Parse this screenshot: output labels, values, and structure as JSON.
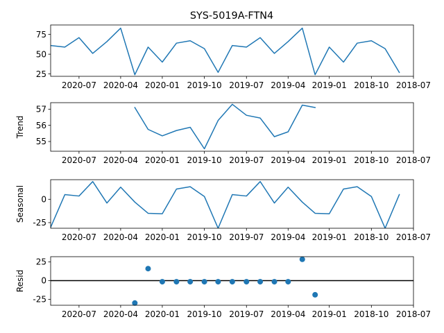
{
  "chart_data": {
    "type": "line",
    "title": "SYS-5019A-FTN4",
    "x_axis": {
      "inverted": true,
      "range": [
        "2020-09-01",
        "2018-07-01"
      ],
      "tick_labels": [
        "2020-07",
        "2020-04",
        "2020-01",
        "2019-10",
        "2019-07",
        "2019-04",
        "2019-01",
        "2018-10",
        "2018-07"
      ]
    },
    "x": [
      "2020-09-01",
      "2020-08-01",
      "2020-07-01",
      "2020-06-01",
      "2020-05-01",
      "2020-04-01",
      "2020-03-01",
      "2020-02-01",
      "2020-01-01",
      "2019-12-01",
      "2019-11-01",
      "2019-10-01",
      "2019-09-01",
      "2019-08-01",
      "2019-07-01",
      "2019-06-01",
      "2019-05-01",
      "2019-04-01",
      "2019-03-01",
      "2019-02-01",
      "2019-01-01",
      "2018-12-01",
      "2018-11-01",
      "2018-10-01",
      "2018-09-01",
      "2018-08-01",
      "2018-07-01"
    ],
    "panels": [
      {
        "name": "observed",
        "ylabel": "",
        "ylim": [
          22,
          87
        ],
        "yticks": [
          25,
          50,
          75
        ],
        "kind": "line",
        "values": [
          61,
          59,
          71,
          51,
          66,
          83,
          24,
          59,
          40,
          64,
          67,
          57,
          27,
          61,
          59,
          71,
          51,
          66,
          83,
          24,
          59,
          40,
          64,
          67,
          57,
          27,
          null
        ]
      },
      {
        "name": "trend",
        "ylabel": "Trend",
        "ylim": [
          54.4,
          57.4
        ],
        "yticks": [
          55,
          56,
          57
        ],
        "kind": "line",
        "values": [
          null,
          null,
          null,
          null,
          null,
          null,
          57.1,
          55.75,
          55.35,
          55.68,
          55.88,
          54.55,
          56.3,
          57.3,
          56.62,
          56.45,
          55.3,
          55.6,
          57.25,
          57.1,
          null,
          null,
          null,
          null,
          null,
          null,
          null
        ]
      },
      {
        "name": "seasonal",
        "ylabel": "Seasonal",
        "ylim": [
          -31,
          21
        ],
        "yticks": [
          -25,
          0
        ],
        "kind": "line",
        "values": [
          -30,
          5,
          3.5,
          19,
          -4,
          13,
          -3,
          -15,
          -15.5,
          11,
          13.5,
          3,
          -31,
          5,
          3.5,
          19,
          -4,
          13,
          -3,
          -15,
          -15.5,
          11,
          13.5,
          3,
          -31,
          5,
          null
        ]
      },
      {
        "name": "resid",
        "ylabel": "Resid",
        "ylim": [
          -33,
          32
        ],
        "yticks": [
          -25,
          0,
          25
        ],
        "kind": "scatter",
        "baseline": 0,
        "values": [
          null,
          null,
          null,
          null,
          null,
          null,
          -30,
          16,
          -1.5,
          -1.5,
          -1.5,
          -1.5,
          -1.5,
          -1.5,
          -1.5,
          -1.5,
          -1.5,
          -1.5,
          28.5,
          -19,
          null,
          null,
          null,
          null,
          null,
          null,
          null
        ]
      }
    ]
  }
}
